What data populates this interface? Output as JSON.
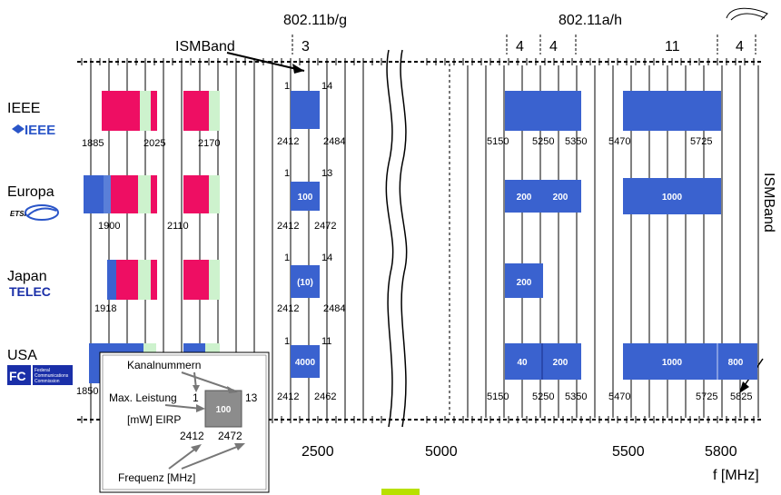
{
  "headers": {
    "b_g": "802.11b/g",
    "a_h": "802.11a/h",
    "ism_band": "ISMBand",
    "ism_band_vertical": "ISMBand",
    "ch_count_bg": "3",
    "ch_count_a1": "4",
    "ch_count_a2": "4",
    "ch_count_a3": "11",
    "ch_count_a4": "4"
  },
  "regions": [
    {
      "name": "IEEE",
      "logo_text": "IEEE",
      "bg_ch_start": "1",
      "bg_ch_end": "14",
      "bg_freq_start": "2412",
      "bg_freq_end": "2484",
      "dect_left": "1885",
      "dect_mid": "2025",
      "dect_right": "2170",
      "a_freqs": [
        "5150",
        "5250",
        "5350",
        "5470",
        "5725"
      ],
      "bg_value": "",
      "a_values": [
        "",
        ""
      ]
    },
    {
      "name": "Europa",
      "logo_text": "ETSI",
      "bg_ch_start": "1",
      "bg_ch_end": "13",
      "bg_freq_start": "2412",
      "bg_freq_end": "2472",
      "dect_left": "1900",
      "dect_right": "2110",
      "bg_value": "100",
      "a_values": [
        "200",
        "200",
        "1000"
      ]
    },
    {
      "name": "Japan",
      "logo_text": "TELEC",
      "bg_ch_start": "1",
      "bg_ch_end": "14",
      "bg_freq_start": "2412",
      "bg_freq_end": "2484",
      "dect_left": "1918",
      "bg_value": "(10)",
      "a_values": [
        "200"
      ]
    },
    {
      "name": "USA",
      "logo_text": "FC",
      "logo_sub": [
        "Federal",
        "Communications",
        "Commission"
      ],
      "bg_ch_start": "1",
      "bg_ch_end": "11",
      "bg_freq_start": "2412",
      "bg_freq_end": "2462",
      "dect_left": "1850",
      "a_freqs": [
        "5150",
        "5250",
        "5350",
        "5470",
        "5725",
        "5825"
      ],
      "bg_value": "4000",
      "a_values": [
        "40",
        "200",
        "1000",
        "800"
      ]
    }
  ],
  "axis": {
    "ticks": [
      "2500",
      "5000",
      "5500",
      "5800"
    ],
    "unit": "f [MHz]"
  },
  "legend": {
    "channels": "Kanalnummern",
    "max_power_1": "Max. Leistung",
    "max_power_2": "[mW] EIRP",
    "ch_start": "1",
    "ch_end": "13",
    "value": "100",
    "freq_start": "2412",
    "freq_end": "2472",
    "frequency": "Frequenz [MHz]"
  },
  "colors": {
    "blue": "#3a62cf",
    "red": "#ee0e63",
    "green": "#cdf2cd",
    "grey": "#8c8c8c"
  }
}
